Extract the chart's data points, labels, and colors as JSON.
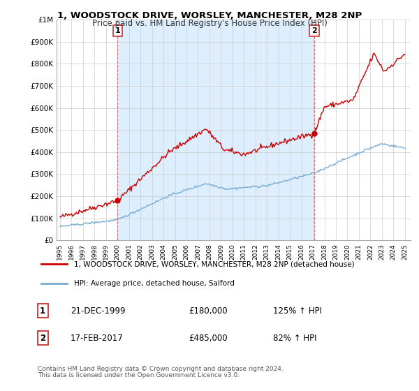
{
  "title1": "1, WOODSTOCK DRIVE, WORSLEY, MANCHESTER, M28 2NP",
  "title2": "Price paid vs. HM Land Registry's House Price Index (HPI)",
  "legend_line1": "1, WOODSTOCK DRIVE, WORSLEY, MANCHESTER, M28 2NP (detached house)",
  "legend_line2": "HPI: Average price, detached house, Salford",
  "annotation1": {
    "num": "1",
    "date": "21-DEC-1999",
    "price": "£180,000",
    "hpi": "125% ↑ HPI",
    "year": 2000.0,
    "value": 180000
  },
  "annotation2": {
    "num": "2",
    "date": "17-FEB-2017",
    "price": "£485,000",
    "hpi": "82% ↑ HPI",
    "year": 2017.12,
    "value": 485000
  },
  "footnote1": "Contains HM Land Registry data © Crown copyright and database right 2024.",
  "footnote2": "This data is licensed under the Open Government Licence v3.0.",
  "line_color_red": "#cc0000",
  "line_color_blue": "#7aadd4",
  "shade_color": "#ddeeff",
  "background_color": "#ffffff",
  "grid_color": "#cccccc",
  "ylim": [
    0,
    1000000
  ],
  "xlim_start": 1994.7,
  "xlim_end": 2025.5
}
